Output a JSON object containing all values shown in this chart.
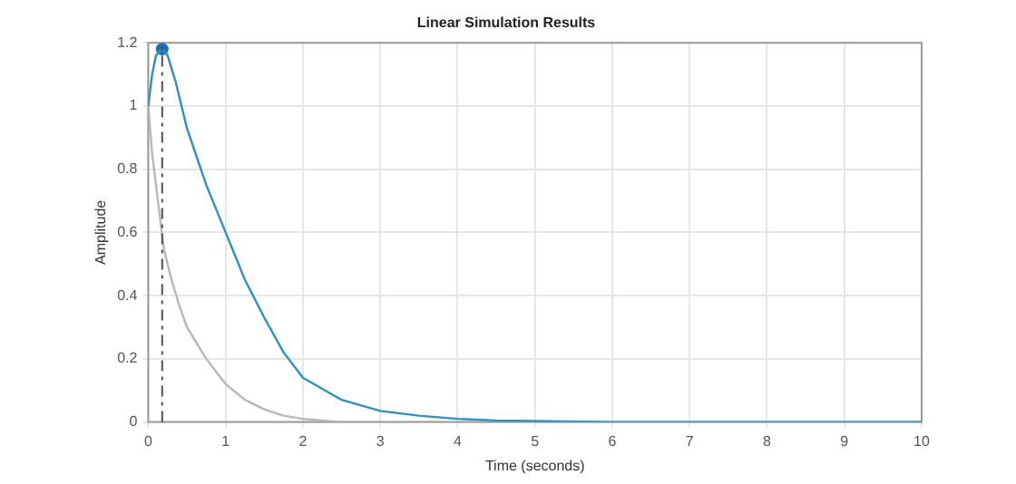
{
  "chart_data": {
    "type": "line",
    "title": "Linear Simulation Results",
    "xlabel": "Time (seconds)",
    "ylabel": "Amplitude",
    "series": [
      {
        "color": "#b8b8b8",
        "x": [
          0,
          0.05,
          0.1,
          0.2,
          0.3,
          0.4,
          0.5,
          0.75,
          1,
          1.25,
          1.5,
          1.75,
          2,
          2.5
        ],
        "values": [
          1,
          0.85,
          0.75,
          0.55,
          0.45,
          0.37,
          0.3,
          0.2,
          0.12,
          0.07,
          0.04,
          0.02,
          0.01,
          0
        ]
      },
      {
        "color": "#2f8fc0",
        "x": [
          0,
          0.05,
          0.1,
          0.18,
          0.25,
          0.35,
          0.5,
          0.75,
          1,
          1.25,
          1.5,
          1.75,
          2,
          2.5,
          3,
          3.5,
          4,
          4.5,
          5,
          6,
          7,
          8,
          9,
          10
        ],
        "values": [
          1,
          1.1,
          1.16,
          1.18,
          1.16,
          1.08,
          0.93,
          0.75,
          0.6,
          0.45,
          0.33,
          0.22,
          0.14,
          0.07,
          0.035,
          0.02,
          0.01,
          0.005,
          0.003,
          0,
          0,
          0,
          0,
          0
        ]
      },
      {
        "type": "scatter",
        "marker": "circle",
        "color": "#1f6fb0",
        "x": [
          0.18
        ],
        "values": [
          1.18
        ]
      }
    ],
    "ref_lines": [
      {
        "axis": "x",
        "value": 0.18,
        "color": "#505050",
        "line_style": "dashdot"
      }
    ],
    "xlim": [
      0,
      10
    ],
    "xticks": [
      0,
      1,
      2,
      3,
      4,
      5,
      6,
      7,
      8,
      9,
      10
    ],
    "ylim": [
      0,
      1.2
    ],
    "yticks": [
      0,
      0.2,
      0.4,
      0.6,
      0.8,
      1,
      1.2
    ],
    "grid": true,
    "legend": false,
    "marker": "none",
    "line_style": "solid"
  }
}
